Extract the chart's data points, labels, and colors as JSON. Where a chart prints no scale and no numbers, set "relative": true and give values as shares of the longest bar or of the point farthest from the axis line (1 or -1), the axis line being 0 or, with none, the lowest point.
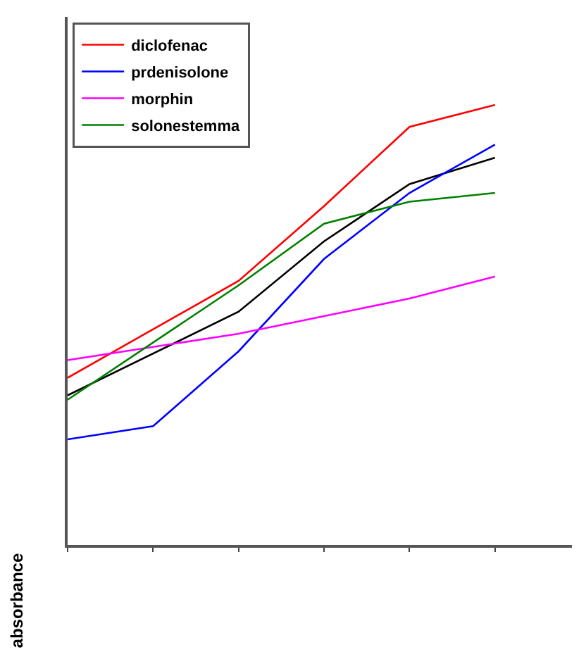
{
  "chart_data": {
    "type": "line",
    "ylabel": "absorbance",
    "relative": true,
    "legend": "top left",
    "marker": "none",
    "line_style": "solid",
    "categories": [
      null,
      null,
      null,
      null,
      null,
      null
    ],
    "series": [
      {
        "color": "#000000",
        "values": [
          0.34,
          null,
          0.53,
          0.69,
          0.82,
          0.88
        ]
      },
      {
        "name": "diclofenac",
        "color": "#ff0000",
        "values": [
          0.38,
          null,
          0.6,
          0.77,
          0.95,
          1
        ]
      },
      {
        "name": "prdenisolone",
        "color": "#0000ff",
        "values": [
          0.24,
          0.27,
          0.44,
          0.65,
          0.8,
          0.91
        ]
      },
      {
        "name": "morphin",
        "color": "#ff00ff",
        "values": [
          0.42,
          null,
          0.48,
          0.52,
          0.56,
          0.61
        ]
      },
      {
        "name": "solonestemma",
        "color": "#008000",
        "values": [
          0.33,
          null,
          0.59,
          0.73,
          0.78,
          0.8
        ]
      }
    ]
  }
}
